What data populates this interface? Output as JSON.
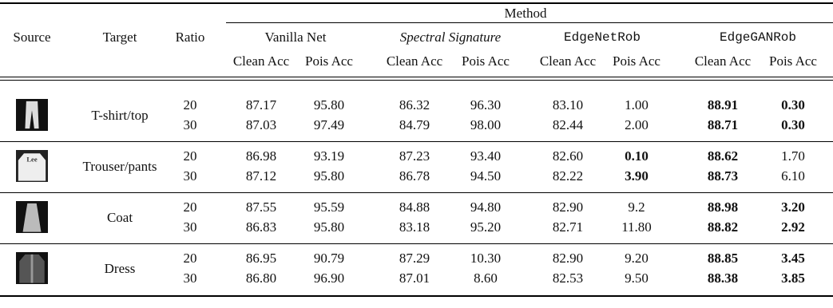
{
  "header": {
    "method": "Method",
    "columns": [
      "Source",
      "Target",
      "Ratio"
    ],
    "methods": [
      "Vanilla Net",
      "Spectral Signature",
      "EdgeNetRob",
      "EdgeGANRob"
    ],
    "metrics": [
      "Clean Acc",
      "Pois Acc",
      "Clean Acc",
      "Pois Acc",
      "Clean Acc",
      "Pois Acc",
      "Clean Acc",
      "Pois Acc"
    ]
  },
  "groups": [
    {
      "target": "T-shirt/top",
      "rows": [
        {
          "ratio": "20",
          "values": [
            "87.17",
            "95.80",
            "86.32",
            "96.30",
            "83.10",
            "1.00",
            "88.91",
            "0.30"
          ],
          "bold": [
            6,
            7
          ]
        },
        {
          "ratio": "30",
          "values": [
            "87.03",
            "97.49",
            "84.79",
            "98.00",
            "82.44",
            "2.00",
            "88.71",
            "0.30"
          ],
          "bold": [
            6,
            7
          ]
        }
      ]
    },
    {
      "target": "Trouser/pants",
      "rows": [
        {
          "ratio": "20",
          "values": [
            "86.98",
            "93.19",
            "87.23",
            "93.40",
            "82.60",
            "0.10",
            "88.62",
            "1.70"
          ],
          "bold": [
            5,
            6
          ]
        },
        {
          "ratio": "30",
          "values": [
            "87.12",
            "95.80",
            "86.78",
            "94.50",
            "82.22",
            "3.90",
            "88.73",
            "6.10"
          ],
          "bold": [
            5,
            6
          ]
        }
      ]
    },
    {
      "target": "Coat",
      "rows": [
        {
          "ratio": "20",
          "values": [
            "87.55",
            "95.59",
            "84.88",
            "94.80",
            "82.90",
            "9.2",
            "88.98",
            "3.20"
          ],
          "bold": [
            6,
            7
          ]
        },
        {
          "ratio": "30",
          "values": [
            "86.83",
            "95.80",
            "83.18",
            "95.20",
            "82.71",
            "11.80",
            "88.82",
            "2.92"
          ],
          "bold": [
            6,
            7
          ]
        }
      ]
    },
    {
      "target": "Dress",
      "rows": [
        {
          "ratio": "20",
          "values": [
            "86.95",
            "90.79",
            "87.29",
            "10.30",
            "82.90",
            "9.20",
            "88.85",
            "3.45"
          ],
          "bold": [
            6,
            7
          ]
        },
        {
          "ratio": "30",
          "values": [
            "86.80",
            "96.90",
            "87.01",
            "8.60",
            "82.53",
            "9.50",
            "88.38",
            "3.85"
          ],
          "bold": [
            6,
            7
          ]
        }
      ]
    }
  ]
}
